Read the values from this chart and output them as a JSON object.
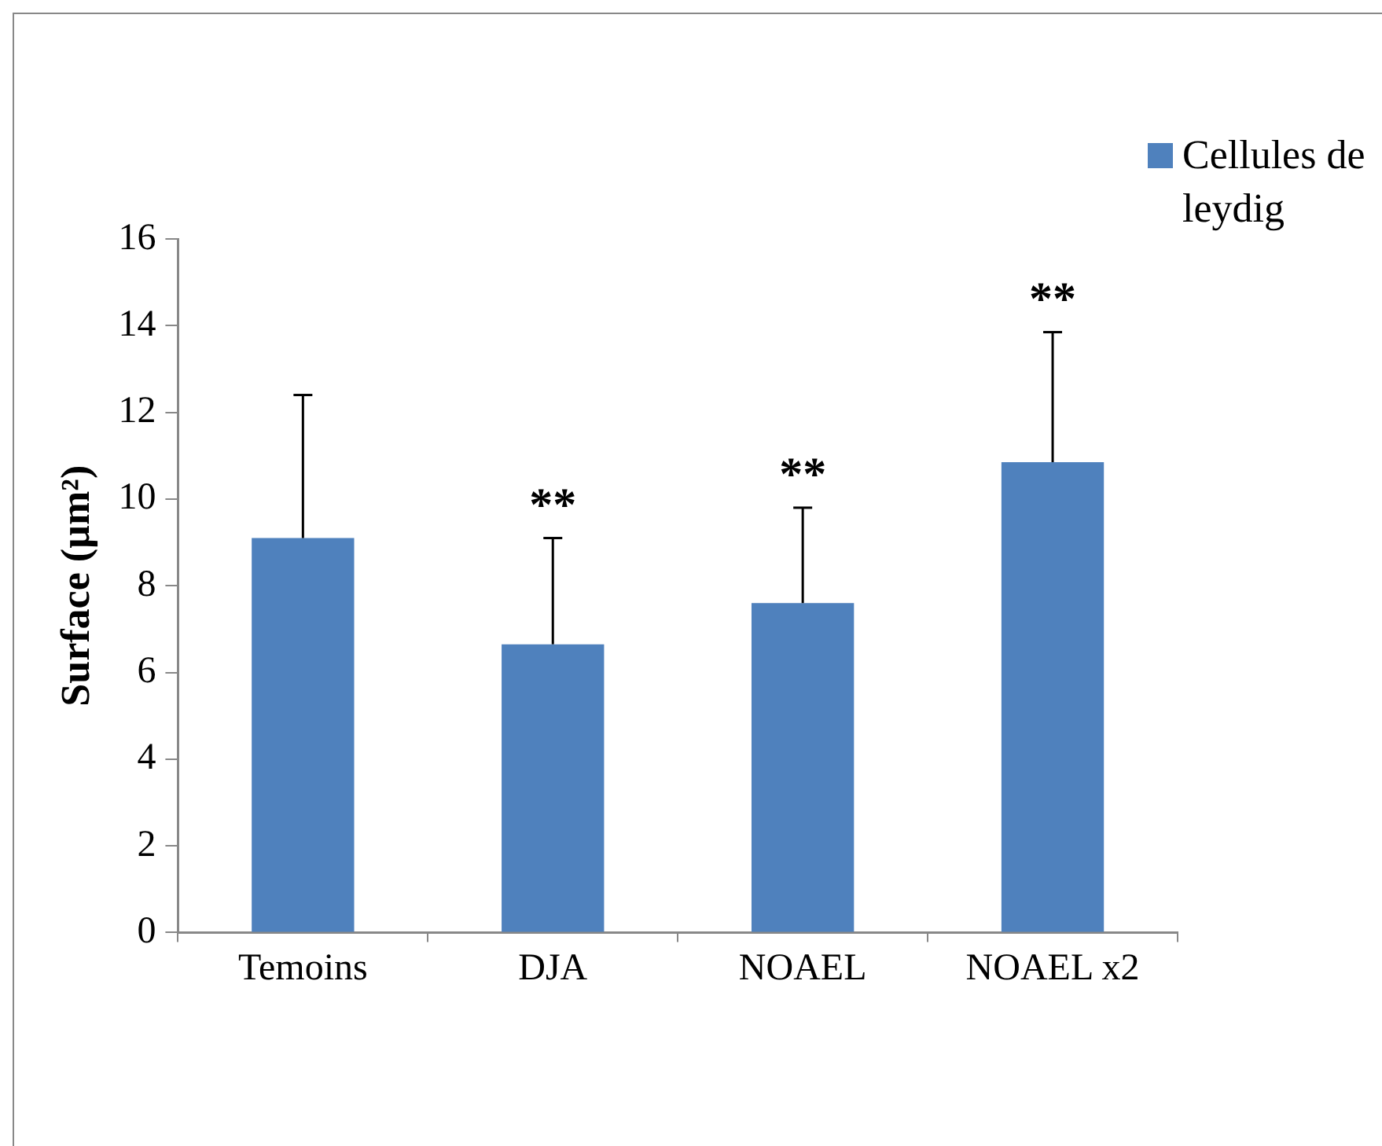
{
  "chart_data": {
    "type": "bar",
    "ylabel": "Surface (µm²)",
    "categories": [
      "Temoins",
      "DJA",
      "NOAEL",
      "NOAEL x2"
    ],
    "series": [
      {
        "name": "Cellules de leydig",
        "color": "#4f81bd",
        "values": [
          9.1,
          6.65,
          7.6,
          10.85
        ],
        "errors": [
          [
            9.1,
            12.4
          ],
          [
            6.65,
            9.1
          ],
          [
            7.6,
            9.8
          ],
          [
            10.85,
            13.85
          ]
        ]
      }
    ],
    "ylim": [
      0,
      16
    ],
    "yticks": [
      0,
      2,
      4,
      6,
      8,
      10,
      12,
      14,
      16
    ],
    "grid": false,
    "legend": "top right",
    "annotations": [
      {
        "text": "**",
        "x": "DJA",
        "y": 9.1
      },
      {
        "text": "**",
        "x": "NOAEL",
        "y": 9.8
      },
      {
        "text": "**",
        "x": "NOAEL x2",
        "y": 13.85
      }
    ]
  }
}
